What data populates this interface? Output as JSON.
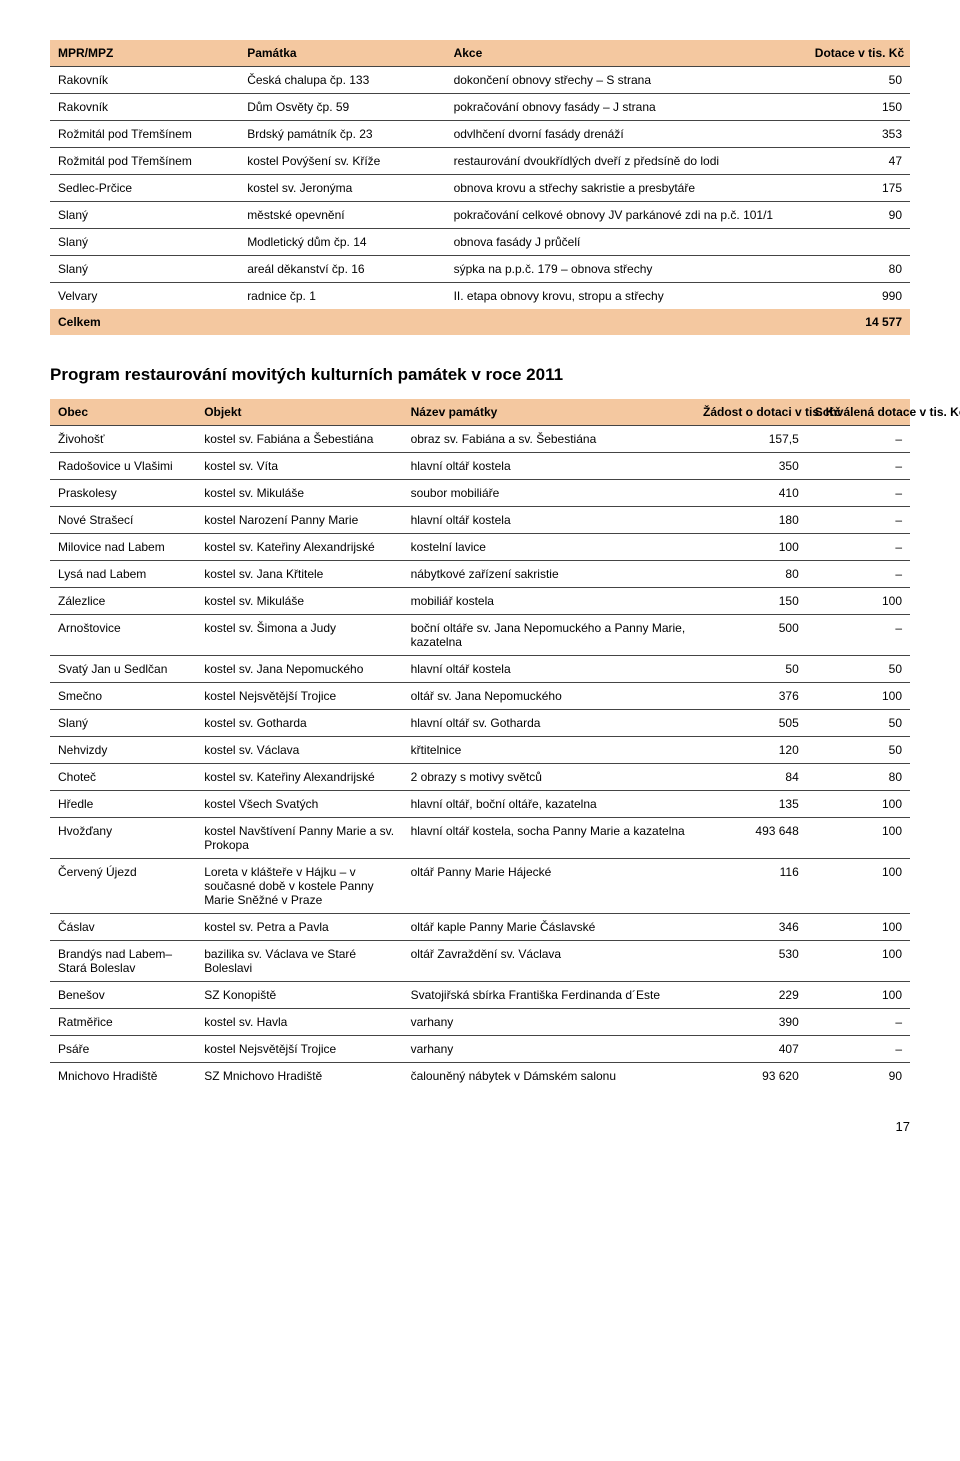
{
  "table1": {
    "headers": [
      "MPR/MPZ",
      "Památka",
      "Akce",
      "Dotace v tis. Kč"
    ],
    "rows": [
      [
        "Rakovník",
        "Česká chalupa čp. 133",
        "dokončení obnovy střechy – S strana",
        "50"
      ],
      [
        "Rakovník",
        "Dům Osvěty čp. 59",
        "pokračování obnovy fasády – J strana",
        "150"
      ],
      [
        "Rožmitál pod Třemšínem",
        "Brdský památník čp. 23",
        "odvlhčení dvorní fasády drenáží",
        "353"
      ],
      [
        "Rožmitál pod Třemšínem",
        "kostel Povýšení sv. Kříže",
        "restaurování dvoukřídlých dveří z předsíně do lodi",
        "47"
      ],
      [
        "Sedlec-Prčice",
        "kostel sv. Jeronýma",
        "obnova krovu a střechy sakristie a presbytáře",
        "175"
      ],
      [
        "Slaný",
        "městské opevnění",
        "pokračování celkové obnovy JV parkánové zdi na p.č. 101/1",
        "90"
      ],
      [
        "Slaný",
        "Modletický dům čp. 14",
        "obnova fasády J průčelí",
        ""
      ],
      [
        "Slaný",
        "areál děkanství čp. 16",
        "sýpka na p.p.č. 179 – obnova střechy",
        "80"
      ],
      [
        "Velvary",
        "radnice čp. 1",
        "II. etapa obnovy krovu, stropu a střechy",
        "990"
      ]
    ],
    "total_label": "Celkem",
    "total_value": "14 577"
  },
  "section_title": "Program restaurování movitých kulturních památek v roce 2011",
  "table2": {
    "headers": [
      "Obec",
      "Objekt",
      "Název památky",
      "Žádost o dotaci v tis. Kč",
      "Schválená dotace v tis. Kč"
    ],
    "rows": [
      [
        "Živohošť",
        "kostel sv. Fabiána a Šebestiána",
        "obraz sv. Fabiána a sv. Šebestiána",
        "157,5",
        "–"
      ],
      [
        "Radošovice u Vlašimi",
        "kostel sv. Víta",
        "hlavní oltář kostela",
        "350",
        "–"
      ],
      [
        "Praskolesy",
        "kostel sv. Mikuláše",
        "soubor mobiliáře",
        "410",
        "–"
      ],
      [
        "Nové Strašecí",
        "kostel Narození Panny Marie",
        "hlavní oltář kostela",
        "180",
        "–"
      ],
      [
        "Milovice nad Labem",
        "kostel sv. Kateřiny Alexandrijské",
        "kostelní lavice",
        "100",
        "–"
      ],
      [
        "Lysá nad Labem",
        "kostel sv. Jana Křtitele",
        "nábytkové zařízení sakristie",
        "80",
        "–"
      ],
      [
        "Zálezlice",
        "kostel sv. Mikuláše",
        "mobiliář kostela",
        "150",
        "100"
      ],
      [
        "Arnoštovice",
        "kostel sv. Šimona a Judy",
        "boční oltáře sv. Jana Nepomuckého a Panny Marie, kazatelna",
        "500",
        "–"
      ],
      [
        "Svatý Jan u Sedlčan",
        "kostel sv. Jana Nepomuckého",
        "hlavní oltář kostela",
        "50",
        "50"
      ],
      [
        "Smečno",
        "kostel Nejsvětější Trojice",
        "oltář sv. Jana Nepomuckého",
        "376",
        "100"
      ],
      [
        "Slaný",
        "kostel sv. Gotharda",
        "hlavní oltář sv. Gotharda",
        "505",
        "50"
      ],
      [
        "Nehvizdy",
        "kostel sv. Václava",
        "křtitelnice",
        "120",
        "50"
      ],
      [
        "Choteč",
        "kostel sv. Kateřiny Alexandrijské",
        "2 obrazy s motivy světců",
        "84",
        "80"
      ],
      [
        "Hředle",
        "kostel Všech Svatých",
        "hlavní oltář, boční oltáře, kazatelna",
        "135",
        "100"
      ],
      [
        "Hvožďany",
        "kostel Navštívení Panny Marie a sv. Prokopa",
        "hlavní oltář kostela, socha Panny Marie a kazatelna",
        "493 648",
        "100"
      ],
      [
        "Červený Újezd",
        "Loreta v klášteře v Hájku – v současné době v kostele Panny Marie Sněžné v Praze",
        "oltář Panny Marie Hájecké",
        "116",
        "100"
      ],
      [
        "Čáslav",
        "kostel sv. Petra a Pavla",
        "oltář kaple Panny Marie Čáslavské",
        "346",
        "100"
      ],
      [
        "Brandýs nad Labem– Stará Boleslav",
        "bazilika sv. Václava ve Staré Boleslavi",
        "oltář Zavraždění sv. Václava",
        "530",
        "100"
      ],
      [
        "Benešov",
        "SZ Konopiště",
        "Svatojiřská sbírka Františka Ferdinanda d´Este",
        "229",
        "100"
      ],
      [
        "Ratměřice",
        "kostel sv. Havla",
        "varhany",
        "390",
        "–"
      ],
      [
        "Psáře",
        "kostel Nejsvětější Trojice",
        "varhany",
        "407",
        "–"
      ],
      [
        "Mnichovo Hradiště",
        "SZ Mnichovo Hradiště",
        "čalouněný nábytek v Dámském salonu",
        "93 620",
        "90"
      ]
    ]
  },
  "page_number": "17"
}
